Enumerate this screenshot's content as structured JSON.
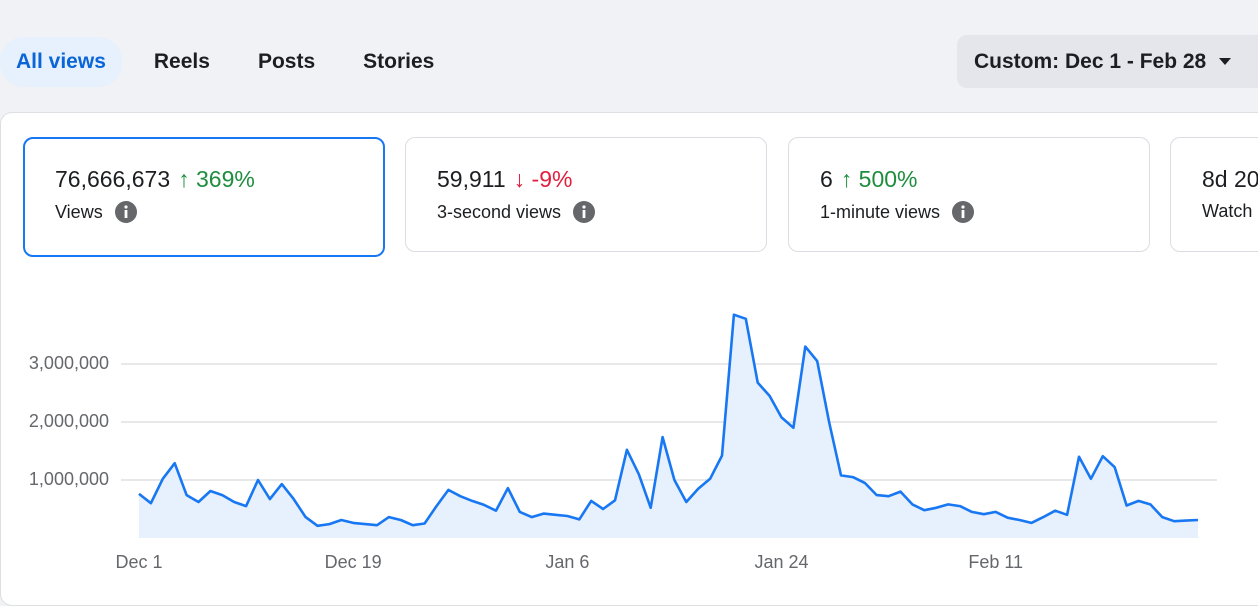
{
  "tabs": [
    "All views",
    "Reels",
    "Posts",
    "Stories"
  ],
  "date_range": "Custom: Dec 1 - Feb 28",
  "cards": [
    {
      "value": "76,666,673",
      "change": "↑ 369%",
      "change_color": "#1e8e3e",
      "label": "Views"
    },
    {
      "value": "59,911",
      "change": "↓ -9%",
      "change_color": "#e41e3f",
      "label": "3-second views"
    },
    {
      "value": "6",
      "change": "↑ 500%",
      "change_color": "#1e8e3e",
      "label": "1-minute views"
    },
    {
      "value": "8d 20",
      "label": "Watch"
    }
  ],
  "chart_data": {
    "type": "line",
    "categories": [
      "Dec 1",
      null,
      null,
      null,
      null,
      null,
      null,
      null,
      null,
      null,
      null,
      null,
      null,
      null,
      null,
      null,
      null,
      null,
      "Dec 19",
      null,
      null,
      null,
      null,
      null,
      null,
      null,
      null,
      null,
      null,
      null,
      null,
      null,
      null,
      null,
      null,
      null,
      "Jan 6",
      null,
      null,
      null,
      null,
      null,
      null,
      null,
      null,
      null,
      null,
      null,
      null,
      null,
      null,
      null,
      null,
      null,
      "Jan 24",
      null,
      null,
      null,
      null,
      null,
      null,
      null,
      null,
      null,
      null,
      null,
      null,
      null,
      null,
      null,
      null,
      null,
      "Feb 11",
      null,
      null,
      null,
      null,
      null,
      null,
      null,
      null,
      null,
      null,
      null,
      null,
      null,
      null,
      null,
      null,
      null
    ],
    "series": [
      {
        "name": "Views",
        "color": "#1877f2",
        "fill": "#e7f0fd",
        "values": [
          760000,
          600000,
          1020000,
          1290000,
          740000,
          620000,
          810000,
          740000,
          620000,
          550000,
          1000000,
          670000,
          930000,
          670000,
          360000,
          210000,
          240000,
          310000,
          260000,
          240000,
          220000,
          360000,
          310000,
          220000,
          250000,
          550000,
          830000,
          720000,
          640000,
          570000,
          470000,
          860000,
          450000,
          360000,
          420000,
          400000,
          380000,
          320000,
          640000,
          500000,
          650000,
          1520000,
          1100000,
          520000,
          1740000,
          1000000,
          620000,
          850000,
          1020000,
          1420000,
          3850000,
          3780000,
          2680000,
          2450000,
          2080000,
          1900000,
          3300000,
          3050000,
          2000000,
          1080000,
          1050000,
          950000,
          740000,
          720000,
          800000,
          580000,
          480000,
          520000,
          580000,
          550000,
          450000,
          410000,
          450000,
          350000,
          310000,
          260000,
          360000,
          470000,
          400000,
          1400000,
          1020000,
          1410000,
          1220000,
          560000,
          640000,
          580000,
          360000,
          290000,
          300000,
          310000
        ]
      }
    ],
    "ylim": [
      0,
      4000000
    ],
    "yticks": [
      {
        "value": 1000000,
        "label": "1,000,000"
      },
      {
        "value": 2000000,
        "label": "2,000,000"
      },
      {
        "value": 3000000,
        "label": "3,000,000"
      }
    ],
    "grid": true
  }
}
